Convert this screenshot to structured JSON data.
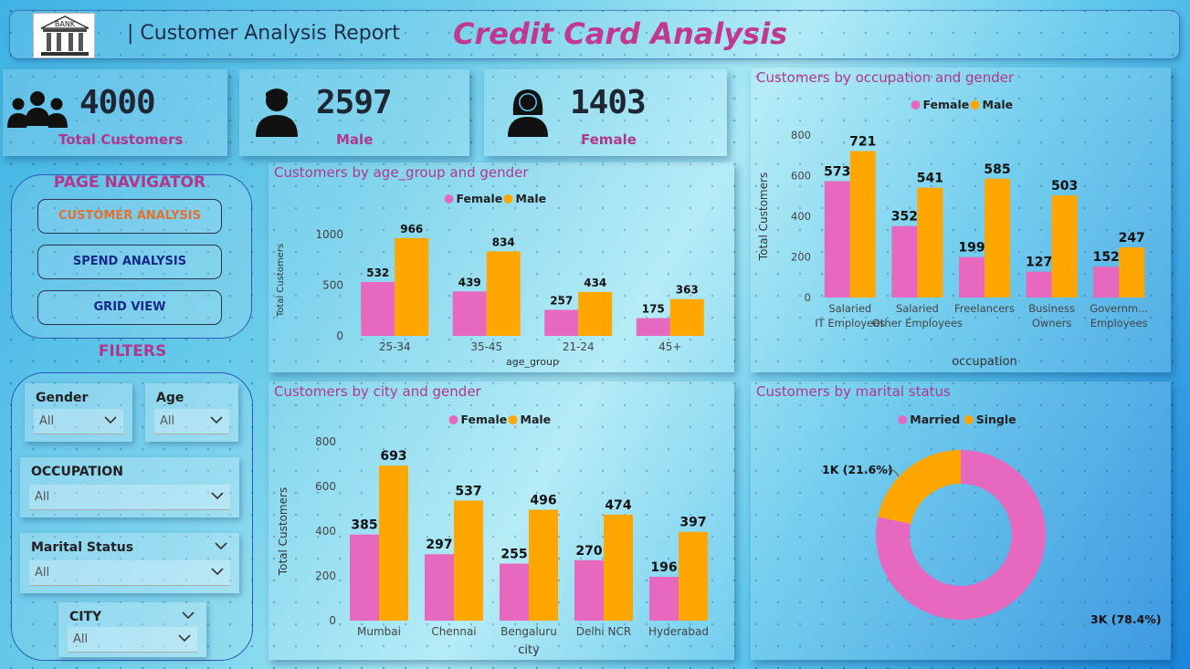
{
  "header": {
    "report_title": "| Customer Analysis Report",
    "main_title": "Credit Card Analysis",
    "logo_text": "BANK"
  },
  "kpis": [
    {
      "value": "4000",
      "label": "Total Customers",
      "icon": "group-icon"
    },
    {
      "value": "2597",
      "label": "Male",
      "icon": "male-user-icon"
    },
    {
      "value": "1403",
      "label": "Female",
      "icon": "female-user-icon"
    }
  ],
  "navigator": {
    "title": "PAGE NAVIGATOR",
    "buttons": [
      {
        "label": "CUSTOMER ANALYSIS",
        "color": "#e8702a"
      },
      {
        "label": "SPEND ANALYSIS",
        "color": "#14298a"
      },
      {
        "label": "GRID VIEW",
        "color": "#14298a"
      }
    ]
  },
  "filters": {
    "title": "FILTERS",
    "gender": {
      "label": "Gender",
      "value": "All"
    },
    "age": {
      "label": "Age",
      "value": "All"
    },
    "occupation": {
      "label": "OCCUPATION",
      "value": "All"
    },
    "marital": {
      "label": "Marital Status",
      "value": "All"
    },
    "city": {
      "label": "CITY",
      "value": "All"
    }
  },
  "colors": {
    "female": "#e668bf",
    "male": "#ffa600",
    "single": "#ffa600",
    "married": "#e668bf"
  },
  "chart_data": [
    {
      "id": "age",
      "type": "bar",
      "title": "Customers by age_group and gender",
      "xlabel": "age_group",
      "ylabel": "Total Customers",
      "legend": [
        "Female",
        "Male"
      ],
      "categories": [
        "25-34",
        "35-45",
        "21-24",
        "45+"
      ],
      "series": [
        {
          "name": "Female",
          "values": [
            532,
            439,
            257,
            175
          ]
        },
        {
          "name": "Male",
          "values": [
            966,
            834,
            434,
            363
          ]
        }
      ],
      "ylim": [
        0,
        1100
      ],
      "yticks": [
        "0",
        "500",
        "1000"
      ]
    },
    {
      "id": "city",
      "type": "bar",
      "title": "Customers by city and gender",
      "xlabel": "city",
      "ylabel": "Total Customers",
      "legend": [
        "Female",
        "Male"
      ],
      "categories": [
        "Mumbai",
        "Chennai",
        "Bengaluru",
        "Delhi NCR",
        "Hyderabad"
      ],
      "series": [
        {
          "name": "Female",
          "values": [
            385,
            297,
            255,
            270,
            196
          ]
        },
        {
          "name": "Male",
          "values": [
            693,
            537,
            496,
            474,
            397
          ]
        }
      ],
      "ylim": [
        0,
        800
      ],
      "yticks": [
        "0",
        "200",
        "400",
        "600",
        "800"
      ]
    },
    {
      "id": "occ",
      "type": "bar",
      "title": "Customers by occupation and gender",
      "xlabel": "occupation",
      "ylabel": "Total Customers",
      "legend": [
        "Female",
        "Male"
      ],
      "categories": [
        "Salaried IT Employees",
        "Salaried Other Employees",
        "Freelancers",
        "Business Owners",
        "Governm... Employees"
      ],
      "series": [
        {
          "name": "Female",
          "values": [
            573,
            352,
            199,
            127,
            152
          ]
        },
        {
          "name": "Male",
          "values": [
            721,
            541,
            585,
            503,
            247
          ]
        }
      ],
      "ylim": [
        0,
        800
      ],
      "yticks": [
        "0",
        "200",
        "400",
        "600",
        "800"
      ]
    },
    {
      "id": "marital",
      "type": "pie",
      "title": "Customers by marital status",
      "legend": [
        "Married",
        "Single"
      ],
      "slices": [
        {
          "name": "Married",
          "value": 78.4,
          "label": "3K (78.4%)"
        },
        {
          "name": "Single",
          "value": 21.6,
          "label": "1K (21.6%)"
        }
      ]
    }
  ]
}
